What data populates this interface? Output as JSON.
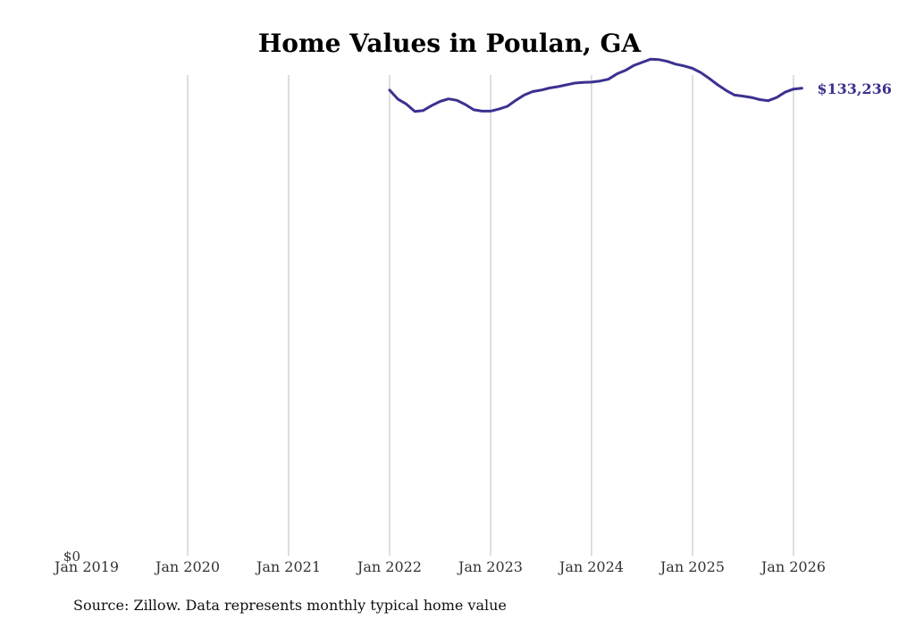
{
  "title": "Home Values in Poulan, GA",
  "source_note": "Source: Zillow. Data represents monthly typical home value",
  "colors": {
    "line": "#3b3190",
    "grid": "#bdbdbd",
    "text": "#333333"
  },
  "chart_data": {
    "type": "line",
    "title": "Home Values in Poulan, GA",
    "xlabel": "",
    "ylabel": "",
    "x_ticks": [
      "Jan 2019",
      "Jan 2020",
      "Jan 2021",
      "Jan 2022",
      "Jan 2023",
      "Jan 2024",
      "Jan 2025",
      "Jan 2026"
    ],
    "y_ticks": [
      "$0"
    ],
    "xlim": [
      "2019-01",
      "2026-06"
    ],
    "ylim": [
      0,
      137000
    ],
    "grid": "vertical",
    "end_label": "$133,236",
    "series": [
      {
        "x": [
          "2022-01",
          "2022-02",
          "2022-03",
          "2022-04",
          "2022-05",
          "2022-06",
          "2022-07",
          "2022-08",
          "2022-09",
          "2022-10",
          "2022-11",
          "2022-12",
          "2023-01",
          "2023-02",
          "2023-03",
          "2023-04",
          "2023-05",
          "2023-06",
          "2023-07",
          "2023-08",
          "2023-09",
          "2023-10",
          "2023-11",
          "2023-12",
          "2024-01",
          "2024-02",
          "2024-03",
          "2024-04",
          "2024-05",
          "2024-06",
          "2024-07",
          "2024-08",
          "2024-09",
          "2024-10",
          "2024-11",
          "2024-12",
          "2025-01",
          "2025-02",
          "2025-03",
          "2025-04",
          "2025-05",
          "2025-06",
          "2025-07",
          "2025-08",
          "2025-09",
          "2025-10",
          "2025-11",
          "2025-12",
          "2026-01",
          "2026-02"
        ],
        "values": [
          132700,
          130100,
          128700,
          126600,
          126900,
          128300,
          129500,
          130200,
          129800,
          128600,
          127100,
          126700,
          126700,
          127300,
          128100,
          129800,
          131300,
          132300,
          132700,
          133300,
          133700,
          134200,
          134700,
          134900,
          135000,
          135300,
          135800,
          137300,
          138300,
          139700,
          140600,
          141500,
          141400,
          140900,
          140100,
          139600,
          138900,
          137700,
          136000,
          134200,
          132600,
          131300,
          131000,
          130600,
          130000,
          129700,
          130600,
          132100,
          133000,
          133236
        ]
      }
    ]
  }
}
